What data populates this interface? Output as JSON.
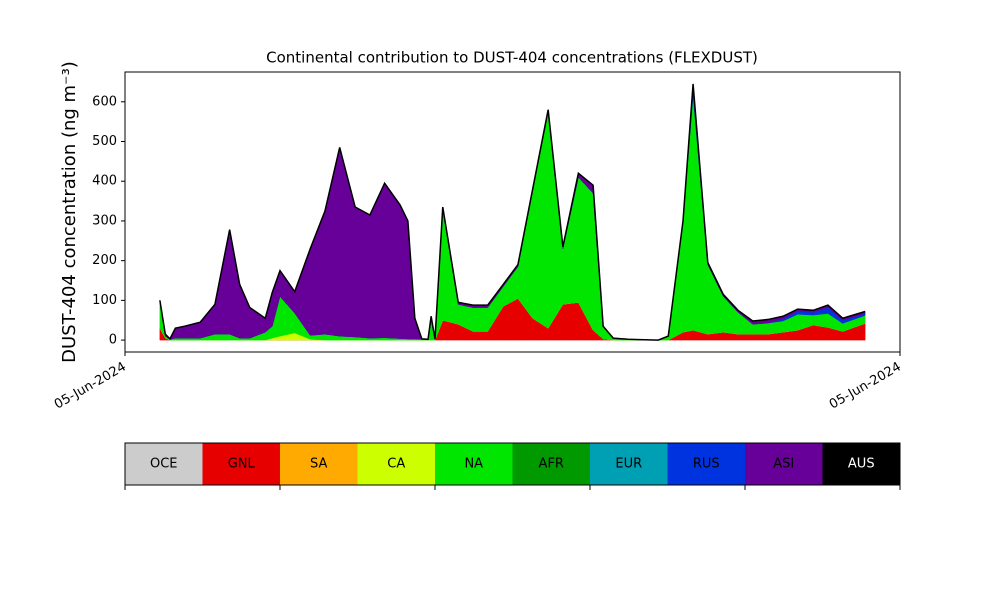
{
  "chart_data": {
    "type": "stacked_area",
    "title": "Continental contribution to DUST-404 concentrations (FLEXDUST)",
    "ylabel": "DUST-404 concentration (ng m⁻³)",
    "xlim": [
      0,
      100
    ],
    "xticks": [
      {
        "value": 0,
        "label": "05-Jun-2024"
      },
      {
        "value": 100,
        "label": "05-Jun-2024"
      }
    ],
    "ylim": [
      -30,
      675
    ],
    "yticks": [
      0,
      100,
      200,
      300,
      400,
      500,
      600
    ],
    "x": [
      4.5,
      5.2,
      5.8,
      6.5,
      7.7,
      9.7,
      11.6,
      13.5,
      14.8,
      16.1,
      18.1,
      19.0,
      20.0,
      21.9,
      23.9,
      25.8,
      27.7,
      29.7,
      31.6,
      33.5,
      35.5,
      36.5,
      37.4,
      38.3,
      39.1,
      39.5,
      40.0,
      41.0,
      43.0,
      44.9,
      46.8,
      48.8,
      50.7,
      52.6,
      54.6,
      56.5,
      58.5,
      60.4,
      61.7,
      63.0,
      64.9,
      68.8,
      70.1,
      72.0,
      73.3,
      75.2,
      77.2,
      79.1,
      81.0,
      83.0,
      84.9,
      86.8,
      88.8,
      90.7,
      92.6,
      95.5
    ],
    "series": [
      {
        "name": "GNL",
        "color": "#e60000",
        "values": [
          30,
          5,
          0,
          0,
          0,
          0,
          0,
          0,
          0,
          0,
          0,
          0,
          0,
          0,
          0,
          0,
          0,
          0,
          0,
          0,
          0,
          0,
          0,
          0,
          0,
          0,
          0,
          50,
          40,
          22,
          22,
          85,
          105,
          55,
          30,
          90,
          95,
          25,
          3,
          0,
          0,
          0,
          0,
          20,
          25,
          15,
          20,
          15,
          15,
          15,
          20,
          25,
          38,
          32,
          22,
          42
        ]
      },
      {
        "name": "CA",
        "color": "#ccff00",
        "values": [
          0,
          0,
          0,
          0,
          0,
          0,
          0,
          0,
          0,
          0,
          0,
          5,
          10,
          18,
          2,
          0,
          0,
          0,
          0,
          0,
          0,
          0,
          0,
          0,
          0,
          0,
          0,
          0,
          0,
          0,
          0,
          0,
          0,
          0,
          0,
          0,
          0,
          0,
          0,
          0,
          0,
          0,
          0,
          0,
          0,
          0,
          0,
          0,
          0,
          0,
          0,
          0,
          0,
          0,
          0,
          0
        ]
      },
      {
        "name": "NA",
        "color": "#00e600",
        "values": [
          70,
          5,
          2,
          5,
          5,
          5,
          15,
          15,
          5,
          5,
          20,
          30,
          100,
          50,
          10,
          15,
          10,
          8,
          5,
          6,
          4,
          3,
          3,
          2,
          1,
          50,
          2,
          280,
          50,
          60,
          60,
          50,
          80,
          320,
          545,
          140,
          315,
          345,
          30,
          4,
          2,
          0,
          10,
          280,
          590,
          175,
          90,
          55,
          25,
          28,
          28,
          40,
          25,
          35,
          20,
          20
        ]
      },
      {
        "name": "RUS",
        "color": "#0033e0",
        "values": [
          0,
          0,
          0,
          0,
          0,
          0,
          0,
          0,
          0,
          0,
          0,
          0,
          0,
          0,
          0,
          0,
          0,
          0,
          0,
          0,
          0,
          0,
          0,
          0,
          0,
          0,
          0,
          0,
          0,
          0,
          0,
          0,
          0,
          0,
          0,
          0,
          0,
          0,
          0,
          0,
          0,
          0,
          0,
          0,
          20,
          0,
          0,
          0,
          0,
          0,
          5,
          8,
          7,
          15,
          8,
          5
        ]
      },
      {
        "name": "ASI",
        "color": "#660099",
        "values": [
          0,
          5,
          1,
          25,
          30,
          40,
          75,
          263,
          135,
          77,
          35,
          85,
          65,
          54,
          218,
          310,
          475,
          327,
          310,
          389,
          336,
          297,
          52,
          1,
          1,
          10,
          1,
          5,
          5,
          6,
          6,
          5,
          5,
          5,
          5,
          5,
          10,
          20,
          2,
          1,
          0,
          0,
          0,
          0,
          10,
          5,
          5,
          5,
          8,
          9,
          7,
          5,
          5,
          6,
          5,
          5
        ]
      }
    ],
    "colorbar": {
      "labels": [
        "OCE",
        "GNL",
        "SA",
        "CA",
        "NA",
        "AFR",
        "EUR",
        "RUS",
        "ASI",
        "AUS"
      ],
      "colors": [
        "#cccccc",
        "#e60000",
        "#ffaa00",
        "#ccff00",
        "#00e600",
        "#009900",
        "#00a0b4",
        "#0033e0",
        "#660099",
        "#000000"
      ]
    }
  }
}
